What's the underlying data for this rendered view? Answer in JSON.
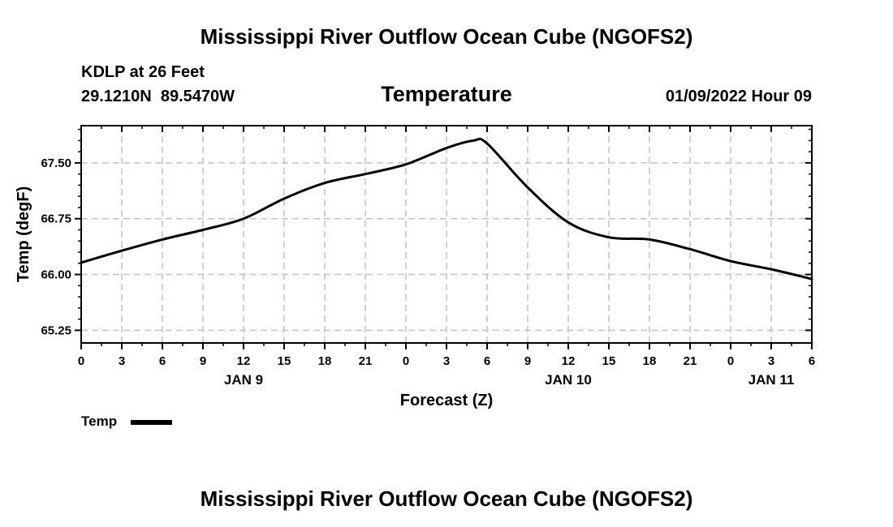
{
  "page": {
    "title": "Mississippi River Outflow Ocean Cube (NGOFS2)",
    "footer_title": "Mississippi River Outflow Ocean Cube (NGOFS2)"
  },
  "header": {
    "station": "KDLP at 26 Feet",
    "coords": "29.1210N  89.5470W",
    "variable": "Temperature",
    "datetime": "01/09/2022 Hour 09"
  },
  "legend": {
    "label": "Temp",
    "color": "#000000"
  },
  "chart_data": {
    "type": "line",
    "title": "Temperature",
    "xlabel": "Forecast (Z)",
    "ylabel": "Temp (degF)",
    "x_units": "hours from 2022-01-09 00Z",
    "xlim": [
      0,
      54
    ],
    "ylim": [
      65.08,
      68.0
    ],
    "grid": true,
    "legend_position": "bottom-left",
    "x_ticks": [
      0,
      3,
      6,
      9,
      12,
      15,
      18,
      21,
      24,
      27,
      30,
      33,
      36,
      39,
      42,
      45,
      48,
      51,
      54
    ],
    "x_tick_labels": [
      "0",
      "3",
      "6",
      "9",
      "12",
      "15",
      "18",
      "21",
      "0",
      "3",
      "6",
      "9",
      "12",
      "15",
      "18",
      "21",
      "0",
      "3",
      "6"
    ],
    "x_minor_ticks": [
      1.5,
      4.5,
      7.5,
      10.5,
      13.5,
      16.5,
      19.5,
      22.5,
      25.5,
      28.5,
      31.5,
      34.5,
      37.5,
      40.5,
      43.5,
      46.5,
      49.5,
      52.5
    ],
    "day_labels": [
      {
        "x": 12,
        "label": "JAN 9"
      },
      {
        "x": 36,
        "label": "JAN 10"
      },
      {
        "x": 51,
        "label": "JAN 11"
      }
    ],
    "y_ticks": [
      65.25,
      66.0,
      66.75,
      67.5
    ],
    "y_tick_labels": [
      "65.25",
      "66.00",
      "66.75",
      "67.50"
    ],
    "y_minor_ticks": [
      65.4,
      65.55,
      65.7,
      65.85,
      66.15,
      66.3,
      66.45,
      66.6,
      66.9,
      67.05,
      67.2,
      67.35,
      67.65,
      67.8,
      67.95
    ],
    "series": [
      {
        "name": "Temp",
        "color": "#000000",
        "x": [
          0,
          3,
          6,
          9,
          12,
          15,
          18,
          21,
          24,
          27,
          29,
          30,
          33,
          36,
          39,
          42,
          45,
          48,
          51,
          54
        ],
        "values": [
          66.16,
          66.32,
          66.47,
          66.6,
          66.75,
          67.02,
          67.23,
          67.35,
          67.48,
          67.7,
          67.8,
          67.76,
          67.17,
          66.7,
          66.5,
          66.47,
          66.34,
          66.18,
          66.07,
          65.94
        ]
      }
    ]
  }
}
